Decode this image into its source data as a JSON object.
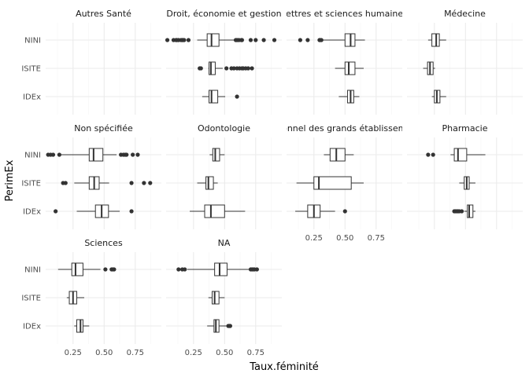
{
  "chart_data": {
    "type": "boxplot",
    "orientation": "horizontal",
    "xlabel": "Taux.féminité",
    "ylabel": "PerimEx",
    "categories": [
      "NINI",
      "ISITE",
      "IDEx"
    ],
    "x_ticks": [
      0.25,
      0.5,
      0.75
    ],
    "x_tick_labels": [
      "0.25",
      "0.50",
      "0.75"
    ],
    "xlim": [
      0.03,
      0.96
    ],
    "grid": true,
    "legend": "none",
    "colors": {
      "stroke": "#333333",
      "grid_major": "#ebebeb",
      "grid_minor": "#f5f5f5",
      "background": "#ffffff"
    },
    "panels": [
      {
        "title": "Autres Santé",
        "boxes": []
      },
      {
        "title": "Droit, économie et gestion",
        "boxes": [
          {
            "group": "NINI",
            "whisker_low": 0.28,
            "q1": 0.36,
            "median": 0.395,
            "q3": 0.455,
            "whisker_high": 0.585,
            "outliers": [
              0.04,
              0.09,
              0.11,
              0.115,
              0.13,
              0.15,
              0.16,
              0.165,
              0.175,
              0.21,
              0.59,
              0.6,
              0.615,
              0.635,
              0.64,
              0.71,
              0.75,
              0.815,
              0.9
            ]
          },
          {
            "group": "ISITE",
            "whisker_low": 0.37,
            "q1": 0.375,
            "median": 0.39,
            "q3": 0.425,
            "whisker_high": 0.485,
            "outliers": [
              0.3,
              0.31,
              0.515,
              0.555,
              0.575,
              0.6,
              0.62,
              0.64,
              0.65,
              0.67,
              0.69,
              0.72
            ]
          },
          {
            "group": "IDEx",
            "whisker_low": 0.32,
            "q1": 0.375,
            "median": 0.395,
            "q3": 0.445,
            "whisker_high": 0.505,
            "outliers": [
              0.6
            ]
          }
        ]
      },
      {
        "title": "Lettres et sciences humaines",
        "boxes": [
          {
            "group": "NINI",
            "whisker_low": 0.3,
            "q1": 0.5,
            "median": 0.545,
            "q3": 0.58,
            "whisker_high": 0.66,
            "outliers": [
              0.14,
              0.2,
              0.295,
              0.3,
              0.31
            ]
          },
          {
            "group": "ISITE",
            "whisker_low": 0.42,
            "q1": 0.5,
            "median": 0.53,
            "q3": 0.58,
            "whisker_high": 0.65,
            "outliers": []
          },
          {
            "group": "IDEx",
            "whisker_low": 0.45,
            "q1": 0.52,
            "median": 0.545,
            "q3": 0.57,
            "whisker_high": 0.615,
            "outliers": []
          }
        ]
      },
      {
        "title": "Médecine",
        "boxes": [
          {
            "group": "NINI",
            "whisker_low": 0.2,
            "q1": 0.23,
            "median": 0.265,
            "q3": 0.29,
            "whisker_high": 0.345,
            "outliers": []
          },
          {
            "group": "ISITE",
            "whisker_low": 0.16,
            "q1": 0.195,
            "median": 0.215,
            "q3": 0.24,
            "whisker_high": 0.255,
            "outliers": []
          },
          {
            "group": "IDEx",
            "whisker_low": 0.23,
            "q1": 0.25,
            "median": 0.27,
            "q3": 0.295,
            "whisker_high": 0.345,
            "outliers": []
          }
        ]
      },
      {
        "title": "Non spécifiée",
        "boxes": [
          {
            "group": "NINI",
            "whisker_low": 0.14,
            "q1": 0.38,
            "median": 0.415,
            "q3": 0.49,
            "whisker_high": 0.6,
            "outliers": [
              0.05,
              0.07,
              0.09,
              0.14,
              0.635,
              0.655,
              0.67,
              0.68,
              0.73,
              0.77
            ]
          },
          {
            "group": "ISITE",
            "whisker_low": 0.26,
            "q1": 0.38,
            "median": 0.42,
            "q3": 0.46,
            "whisker_high": 0.54,
            "outliers": [
              0.17,
              0.19,
              0.72,
              0.82,
              0.87
            ]
          },
          {
            "group": "IDEx",
            "whisker_low": 0.28,
            "q1": 0.43,
            "median": 0.48,
            "q3": 0.535,
            "whisker_high": 0.625,
            "outliers": [
              0.11,
              0.72
            ]
          }
        ]
      },
      {
        "title": "Odontologie",
        "boxes": [
          {
            "group": "NINI",
            "whisker_low": 0.38,
            "q1": 0.405,
            "median": 0.425,
            "q3": 0.46,
            "whisker_high": 0.5,
            "outliers": []
          },
          {
            "group": "ISITE",
            "whisker_low": 0.28,
            "q1": 0.35,
            "median": 0.37,
            "q3": 0.41,
            "whisker_high": 0.445,
            "outliers": []
          },
          {
            "group": "IDEx",
            "whisker_low": 0.22,
            "q1": 0.34,
            "median": 0.39,
            "q3": 0.5,
            "whisker_high": 0.665,
            "outliers": []
          }
        ]
      },
      {
        "title": "Personnel des grands établissements",
        "boxes": [
          {
            "group": "NINI",
            "whisker_low": 0.33,
            "q1": 0.38,
            "median": 0.43,
            "q3": 0.5,
            "whisker_high": 0.57,
            "outliers": []
          },
          {
            "group": "ISITE",
            "whisker_low": 0.11,
            "q1": 0.25,
            "median": 0.29,
            "q3": 0.55,
            "whisker_high": 0.65,
            "outliers": []
          },
          {
            "group": "IDEx",
            "whisker_low": 0.1,
            "q1": 0.2,
            "median": 0.25,
            "q3": 0.3,
            "whisker_high": 0.42,
            "outliers": [
              0.5
            ]
          }
        ]
      },
      {
        "title": "Pharmacie",
        "boxes": [
          {
            "group": "NINI",
            "whisker_low": 0.38,
            "q1": 0.41,
            "median": 0.44,
            "q3": 0.51,
            "whisker_high": 0.66,
            "outliers": [
              0.2,
              0.24
            ]
          },
          {
            "group": "ISITE",
            "whisker_low": 0.45,
            "q1": 0.49,
            "median": 0.51,
            "q3": 0.53,
            "whisker_high": 0.58,
            "outliers": []
          },
          {
            "group": "IDEx",
            "whisker_low": 0.49,
            "q1": 0.515,
            "median": 0.53,
            "q3": 0.56,
            "whisker_high": 0.58,
            "outliers": [
              0.41,
              0.42,
              0.43,
              0.44,
              0.45,
              0.47
            ]
          }
        ]
      },
      {
        "title": "Sciences",
        "boxes": [
          {
            "group": "NINI",
            "whisker_low": 0.13,
            "q1": 0.24,
            "median": 0.27,
            "q3": 0.33,
            "whisker_high": 0.47,
            "outliers": [
              0.51,
              0.56,
              0.57,
              0.58
            ]
          },
          {
            "group": "ISITE",
            "whisker_low": 0.2,
            "q1": 0.22,
            "median": 0.25,
            "q3": 0.28,
            "whisker_high": 0.34,
            "outliers": []
          },
          {
            "group": "IDEx",
            "whisker_low": 0.26,
            "q1": 0.28,
            "median": 0.31,
            "q3": 0.33,
            "whisker_high": 0.38,
            "outliers": []
          }
        ]
      },
      {
        "title": "NA",
        "boxes": [
          {
            "group": "NINI",
            "whisker_low": 0.2,
            "q1": 0.42,
            "median": 0.46,
            "q3": 0.52,
            "whisker_high": 0.7,
            "outliers": [
              0.13,
              0.16,
              0.18,
              0.71,
              0.72,
              0.73,
              0.74,
              0.76
            ]
          },
          {
            "group": "ISITE",
            "whisker_low": 0.37,
            "q1": 0.4,
            "median": 0.42,
            "q3": 0.455,
            "whisker_high": 0.5,
            "outliers": []
          },
          {
            "group": "IDEx",
            "whisker_low": 0.36,
            "q1": 0.415,
            "median": 0.43,
            "q3": 0.455,
            "whisker_high": 0.52,
            "outliers": [
              0.53,
              0.54,
              0.545
            ]
          }
        ]
      }
    ]
  }
}
